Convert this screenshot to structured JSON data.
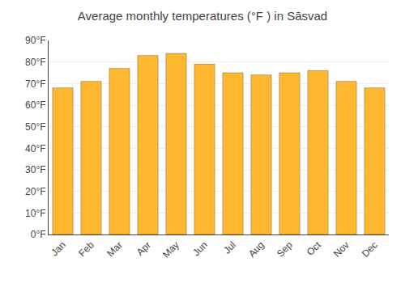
{
  "chart_data": {
    "type": "bar",
    "title": "Average monthly temperatures (°F ) in Sāsvad",
    "categories": [
      "Jan",
      "Feb",
      "Mar",
      "Apr",
      "May",
      "Jun",
      "Jul",
      "Aug",
      "Sep",
      "Oct",
      "Nov",
      "Dec"
    ],
    "values": [
      68,
      71,
      77,
      83,
      84,
      79,
      75,
      74,
      75,
      76,
      71,
      68
    ],
    "color": "#FFB830",
    "ylim": [
      0,
      90
    ],
    "yticks": [
      {
        "value": 0,
        "label": "0°F"
      },
      {
        "value": 10,
        "label": "10°F"
      },
      {
        "value": 20,
        "label": "20°F"
      },
      {
        "value": 30,
        "label": "30°F"
      },
      {
        "value": 40,
        "label": "40°F"
      },
      {
        "value": 50,
        "label": "50°F"
      },
      {
        "value": 60,
        "label": "60°F"
      },
      {
        "value": 70,
        "label": "70°F"
      },
      {
        "value": 80,
        "label": "80°F"
      },
      {
        "value": 90,
        "label": "90°F"
      }
    ],
    "grid": true
  }
}
